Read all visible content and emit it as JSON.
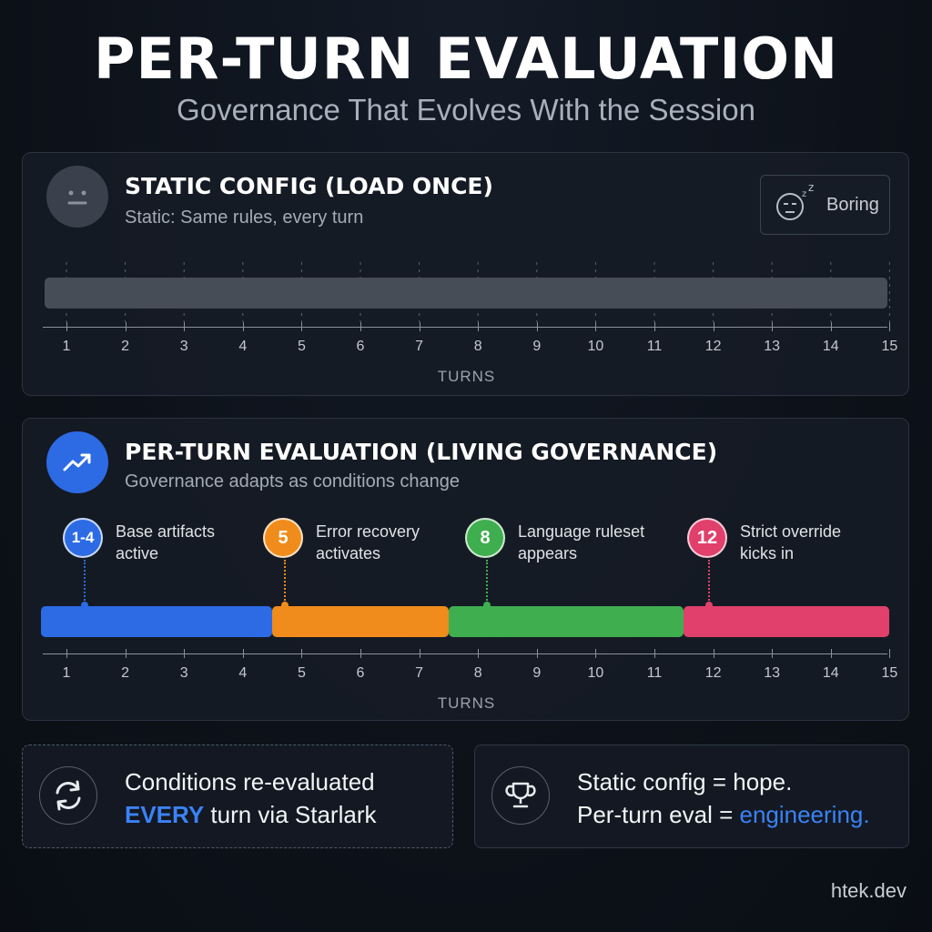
{
  "header": {
    "title": "PER-TURN EVALUATION",
    "subtitle": "Governance That Evolves With the Session"
  },
  "static_panel": {
    "title": "STATIC CONFIG (LOAD ONCE)",
    "subtitle": "Static: Same rules, every turn",
    "icon": "neutral-face-icon",
    "badge": {
      "icon": "sleepy-face-icon",
      "label": "Boring"
    },
    "axis_title": "TURNS",
    "turns": [
      "1",
      "2",
      "3",
      "4",
      "5",
      "6",
      "7",
      "8",
      "9",
      "10",
      "11",
      "12",
      "13",
      "14",
      "15"
    ]
  },
  "living_panel": {
    "title": "PER-TURN EVALUATION (LIVING GOVERNANCE)",
    "subtitle": "Governance adapts as conditions change",
    "icon": "trending-up-icon",
    "axis_title": "TURNS",
    "turns": [
      "1",
      "2",
      "3",
      "4",
      "5",
      "6",
      "7",
      "8",
      "9",
      "10",
      "11",
      "12",
      "13",
      "14",
      "15"
    ],
    "phases": [
      {
        "badge": "1-4",
        "line1": "Base artifacts",
        "line2": "active",
        "color": "#2d6be4",
        "start_turn": 1,
        "end_turn": 4
      },
      {
        "badge": "5",
        "line1": "Error recovery",
        "line2": "activates",
        "color": "#f08c1b",
        "start_turn": 5,
        "end_turn": 7
      },
      {
        "badge": "8",
        "line1": "Language ruleset",
        "line2": "appears",
        "color": "#3fae4f",
        "start_turn": 8,
        "end_turn": 11
      },
      {
        "badge": "12",
        "line1": "Strict override",
        "line2": "kicks in",
        "color": "#e0406b",
        "start_turn": 12,
        "end_turn": 15
      }
    ]
  },
  "cards": {
    "left": {
      "icon": "refresh-cycle-icon",
      "line1": "Conditions re-evaluated",
      "line2_accent": "EVERY",
      "line2_rest": " turn via Starlark"
    },
    "right": {
      "icon": "trophy-icon",
      "line1": "Static config = hope.",
      "line2_prefix": "Per-turn eval = ",
      "line2_accent": "engineering."
    }
  },
  "footer": "htek.dev"
}
